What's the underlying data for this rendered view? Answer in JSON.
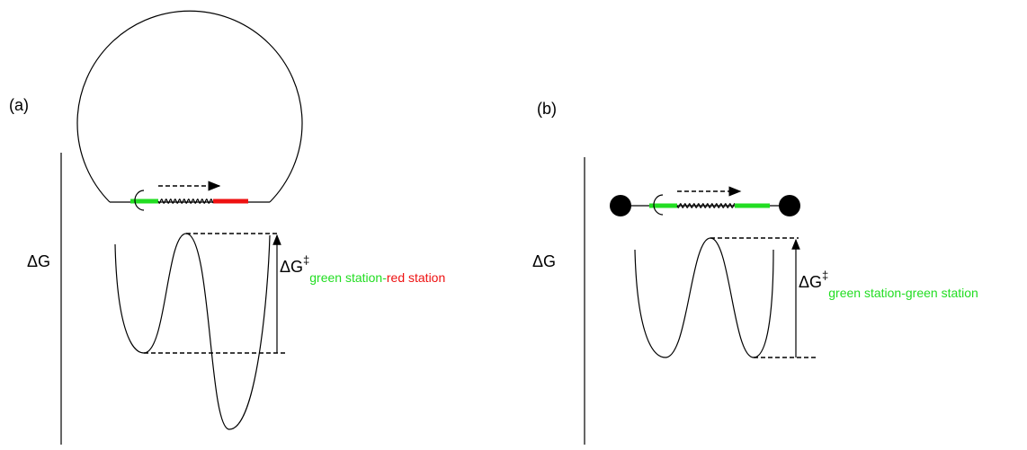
{
  "panels": [
    {
      "label": "(a)",
      "axis_label": "ΔG",
      "barrier": {
        "main": "ΔG",
        "sup": "‡",
        "sub_parts": [
          {
            "text": "green station-",
            "color": "#22dd22"
          },
          {
            "text": "red station",
            "color": "#ee1111"
          }
        ]
      }
    },
    {
      "label": "(b)",
      "axis_label": "ΔG",
      "barrier": {
        "main": "ΔG",
        "sup": "‡",
        "sub_parts": [
          {
            "text": "green station-green station",
            "color": "#22dd22"
          }
        ]
      }
    }
  ]
}
